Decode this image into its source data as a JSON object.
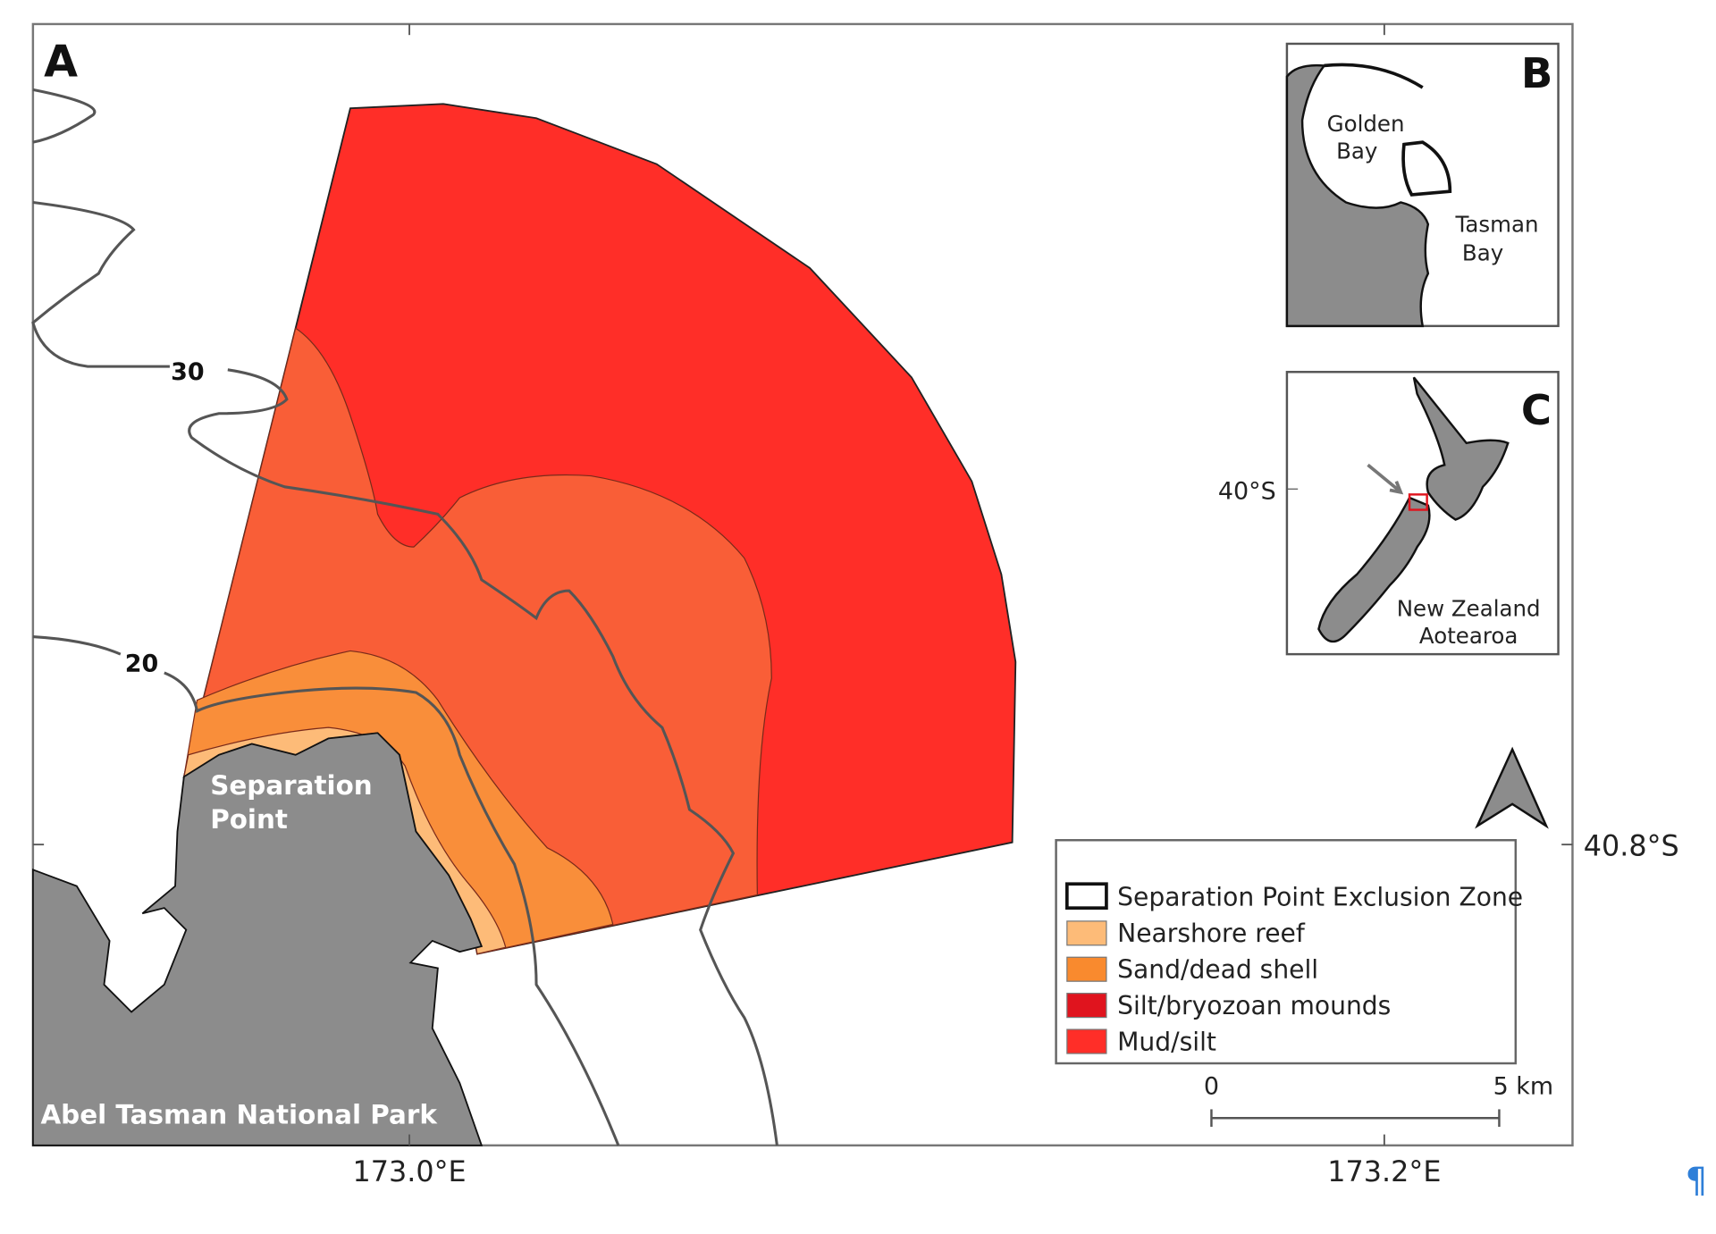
{
  "panels": {
    "main": {
      "letter": "A"
    },
    "inset_b": {
      "letter": "B",
      "labels": [
        "Golden",
        "Bay",
        "Tasman",
        "Bay"
      ]
    },
    "inset_c": {
      "letter": "C",
      "labels": [
        "New Zealand",
        "Aotearoa"
      ],
      "tick_lat": "40°S"
    }
  },
  "place_labels": {
    "separation_point_1": "Separation",
    "separation_point_2": "Point",
    "park": "Abel Tasman National Park"
  },
  "contours": {
    "c30": "30",
    "c20": "20"
  },
  "axes": {
    "x_ticks": [
      "173.0°E",
      "173.2°E"
    ],
    "y_ticks": [
      "40.8°S"
    ]
  },
  "legend": {
    "items": [
      {
        "label": "Separation Point Exclusion Zone",
        "color": "#ffffff",
        "outline": "#000000"
      },
      {
        "label": "Nearshore reef",
        "color": "#fdbb78"
      },
      {
        "label": "Sand/dead shell",
        "color": "#f98a2e"
      },
      {
        "label": "Silt/bryozoan mounds",
        "color": "#e0141e"
      },
      {
        "label": "Mud/silt",
        "color": "#ff2e28"
      }
    ]
  },
  "scale_bar": {
    "start": "0",
    "end": "5 km"
  },
  "colors": {
    "land": "#8c8c8c",
    "mid_zone": "#f95e37",
    "contour": "#555555"
  },
  "pilcrow": "¶"
}
